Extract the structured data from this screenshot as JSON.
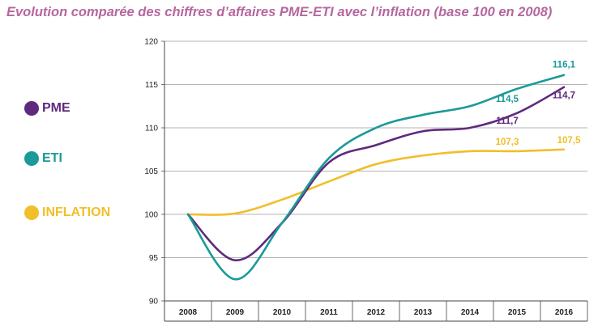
{
  "chart_data": {
    "type": "line",
    "title": "Evolution comparée des chiffres d’affaires PME-ETI avec l’inflation (base 100 en 2008)",
    "x": [
      "2008",
      "2009",
      "2010",
      "2011",
      "2012",
      "2013",
      "2014",
      "2015",
      "2016"
    ],
    "ylim": [
      90,
      120
    ],
    "yticks": [
      "90",
      "95",
      "100",
      "105",
      "110",
      "115",
      "120"
    ],
    "grid": true,
    "legend_position": "left",
    "series": [
      {
        "name": "PME",
        "color": "#5e2a7e",
        "values": [
          100,
          94.7,
          99.0,
          106.0,
          108.0,
          109.6,
          110.0,
          111.7,
          114.7
        ],
        "labels": [
          {
            "x": "2015",
            "text": "111,7"
          },
          {
            "x": "2016",
            "text": "114,7"
          }
        ]
      },
      {
        "name": "ETI",
        "color": "#1a9a98",
        "values": [
          100,
          92.5,
          99.0,
          106.5,
          110.0,
          111.5,
          112.5,
          114.5,
          116.1
        ],
        "labels": [
          {
            "x": "2015",
            "text": "114,5"
          },
          {
            "x": "2016",
            "text": "116,1"
          }
        ]
      },
      {
        "name": "INFLATION",
        "color": "#f0bf2a",
        "values": [
          100,
          100.1,
          101.7,
          103.8,
          105.8,
          106.8,
          107.3,
          107.3,
          107.5
        ],
        "labels": [
          {
            "x": "2015",
            "text": "107,3"
          },
          {
            "x": "2016",
            "text": "107,5"
          }
        ]
      }
    ]
  }
}
